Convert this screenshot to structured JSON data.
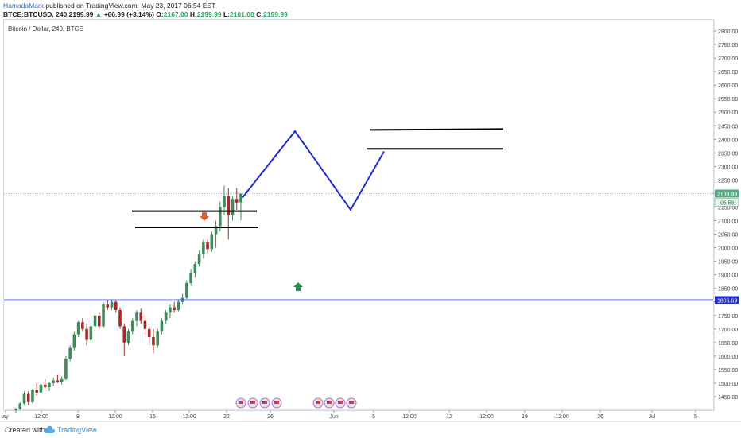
{
  "header": {
    "author": "HamadaMark",
    "published_text": " published on TradingView.com, May 23, 2017 06:54 EST",
    "symbol": "BTCE:BTCUSD, 240",
    "last": "2199.99",
    "change_arrow": "▲",
    "change": "+66.99 (+3.14%)",
    "o_label": "O:",
    "o_value": "2167.00",
    "h_label": "H:",
    "h_value": "2199.99",
    "l_label": "L:",
    "l_value": "2101.00",
    "c_label": "C:",
    "c_value": "2199.99"
  },
  "chart_data": {
    "type": "candlestick",
    "title": "Bitcoin / Dollar, 240, BTCE",
    "ylim": [
      1400,
      2850
    ],
    "y_ticks": [
      "2800.00",
      "2750.00",
      "2700.00",
      "2650.00",
      "2600.00",
      "2550.00",
      "2500.00",
      "2450.00",
      "2400.00",
      "2350.00",
      "2300.00",
      "2250.00",
      "2200.00",
      "2150.00",
      "2100.00",
      "2050.00",
      "2000.00",
      "1950.00",
      "1900.00",
      "1850.00",
      "1800.00",
      "1750.00",
      "1700.00",
      "1650.00",
      "1600.00",
      "1550.00",
      "1500.00",
      "1450.00"
    ],
    "x_ticks": [
      "ay",
      "12:00",
      "8",
      "12:00",
      "15",
      "12:00",
      "22",
      "26",
      "Jun",
      "5",
      "12:00",
      "12",
      "12:00",
      "19",
      "12:00",
      "26",
      "Jul",
      "5"
    ],
    "price_labels": {
      "last": "2199.99",
      "countdown": "05:59",
      "horizontal_line": "1806.69"
    },
    "candles": [
      {
        "o": 1400,
        "h": 1410,
        "l": 1390,
        "c": 1405
      },
      {
        "o": 1405,
        "h": 1430,
        "l": 1400,
        "c": 1425
      },
      {
        "o": 1425,
        "h": 1470,
        "l": 1420,
        "c": 1460
      },
      {
        "o": 1460,
        "h": 1470,
        "l": 1420,
        "c": 1430
      },
      {
        "o": 1430,
        "h": 1480,
        "l": 1425,
        "c": 1475
      },
      {
        "o": 1475,
        "h": 1500,
        "l": 1455,
        "c": 1465
      },
      {
        "o": 1465,
        "h": 1505,
        "l": 1460,
        "c": 1495
      },
      {
        "o": 1495,
        "h": 1515,
        "l": 1480,
        "c": 1485
      },
      {
        "o": 1485,
        "h": 1505,
        "l": 1470,
        "c": 1500
      },
      {
        "o": 1500,
        "h": 1520,
        "l": 1490,
        "c": 1510
      },
      {
        "o": 1510,
        "h": 1530,
        "l": 1500,
        "c": 1505
      },
      {
        "o": 1505,
        "h": 1525,
        "l": 1495,
        "c": 1515
      },
      {
        "o": 1515,
        "h": 1600,
        "l": 1510,
        "c": 1590
      },
      {
        "o": 1590,
        "h": 1640,
        "l": 1580,
        "c": 1630
      },
      {
        "o": 1630,
        "h": 1690,
        "l": 1620,
        "c": 1680
      },
      {
        "o": 1680,
        "h": 1730,
        "l": 1670,
        "c": 1725
      },
      {
        "o": 1725,
        "h": 1740,
        "l": 1690,
        "c": 1700
      },
      {
        "o": 1700,
        "h": 1720,
        "l": 1640,
        "c": 1660
      },
      {
        "o": 1660,
        "h": 1720,
        "l": 1650,
        "c": 1710
      },
      {
        "o": 1710,
        "h": 1760,
        "l": 1700,
        "c": 1750
      },
      {
        "o": 1750,
        "h": 1760,
        "l": 1700,
        "c": 1710
      },
      {
        "o": 1710,
        "h": 1800,
        "l": 1705,
        "c": 1790
      },
      {
        "o": 1790,
        "h": 1805,
        "l": 1770,
        "c": 1780
      },
      {
        "o": 1780,
        "h": 1810,
        "l": 1770,
        "c": 1800
      },
      {
        "o": 1800,
        "h": 1805,
        "l": 1760,
        "c": 1770
      },
      {
        "o": 1770,
        "h": 1780,
        "l": 1700,
        "c": 1710
      },
      {
        "o": 1710,
        "h": 1720,
        "l": 1600,
        "c": 1650
      },
      {
        "o": 1650,
        "h": 1700,
        "l": 1640,
        "c": 1690
      },
      {
        "o": 1690,
        "h": 1740,
        "l": 1680,
        "c": 1730
      },
      {
        "o": 1730,
        "h": 1770,
        "l": 1710,
        "c": 1760
      },
      {
        "o": 1760,
        "h": 1775,
        "l": 1720,
        "c": 1730
      },
      {
        "o": 1730,
        "h": 1750,
        "l": 1680,
        "c": 1700
      },
      {
        "o": 1700,
        "h": 1710,
        "l": 1640,
        "c": 1670
      },
      {
        "o": 1670,
        "h": 1700,
        "l": 1610,
        "c": 1640
      },
      {
        "o": 1640,
        "h": 1700,
        "l": 1630,
        "c": 1690
      },
      {
        "o": 1690,
        "h": 1740,
        "l": 1680,
        "c": 1730
      },
      {
        "o": 1730,
        "h": 1770,
        "l": 1720,
        "c": 1760
      },
      {
        "o": 1760,
        "h": 1790,
        "l": 1740,
        "c": 1780
      },
      {
        "o": 1780,
        "h": 1800,
        "l": 1760,
        "c": 1770
      },
      {
        "o": 1770,
        "h": 1810,
        "l": 1765,
        "c": 1800
      },
      {
        "o": 1800,
        "h": 1830,
        "l": 1790,
        "c": 1815
      },
      {
        "o": 1815,
        "h": 1880,
        "l": 1810,
        "c": 1870
      },
      {
        "o": 1870,
        "h": 1920,
        "l": 1860,
        "c": 1905
      },
      {
        "o": 1905,
        "h": 1950,
        "l": 1890,
        "c": 1940
      },
      {
        "o": 1940,
        "h": 1990,
        "l": 1930,
        "c": 1975
      },
      {
        "o": 1975,
        "h": 2030,
        "l": 1960,
        "c": 2020
      },
      {
        "o": 2020,
        "h": 2030,
        "l": 1980,
        "c": 1995
      },
      {
        "o": 1995,
        "h": 2060,
        "l": 1985,
        "c": 2050
      },
      {
        "o": 2050,
        "h": 2100,
        "l": 2000,
        "c": 2080
      },
      {
        "o": 2080,
        "h": 2170,
        "l": 2060,
        "c": 2150
      },
      {
        "o": 2150,
        "h": 2230,
        "l": 2120,
        "c": 2190
      },
      {
        "o": 2190,
        "h": 2220,
        "l": 2030,
        "c": 2120
      },
      {
        "o": 2120,
        "h": 2190,
        "l": 2100,
        "c": 2180
      },
      {
        "o": 2180,
        "h": 2220,
        "l": 2140,
        "c": 2167
      },
      {
        "o": 2167,
        "h": 2199.99,
        "l": 2101,
        "c": 2199.99
      }
    ],
    "drawings": {
      "horizontal_line_price": 1806.69,
      "resistance_zone_prices": [
        2135,
        2075
      ],
      "target_zone_prices": [
        2435,
        2365
      ],
      "projected_path_prices": [
        2185,
        2430,
        2140,
        2355
      ],
      "down_arrow_price": 2110,
      "up_arrow_price": 1855,
      "last_price_line": 2199.99
    },
    "grid": false
  },
  "colors": {
    "up_candle": "#3d8c5a",
    "down_candle": "#a52a2a",
    "projection": "#1f2bd4",
    "horizontal_line": "#1f2bd4",
    "zone_line": "#000000",
    "down_arrow": "#e05a3a",
    "up_arrow": "#2e8b57",
    "last_price_bg": "#4caf7d"
  },
  "footer": {
    "created_with": "Created with",
    "brand": "TradingView",
    "brand_icon": "cloud-logo-icon"
  }
}
